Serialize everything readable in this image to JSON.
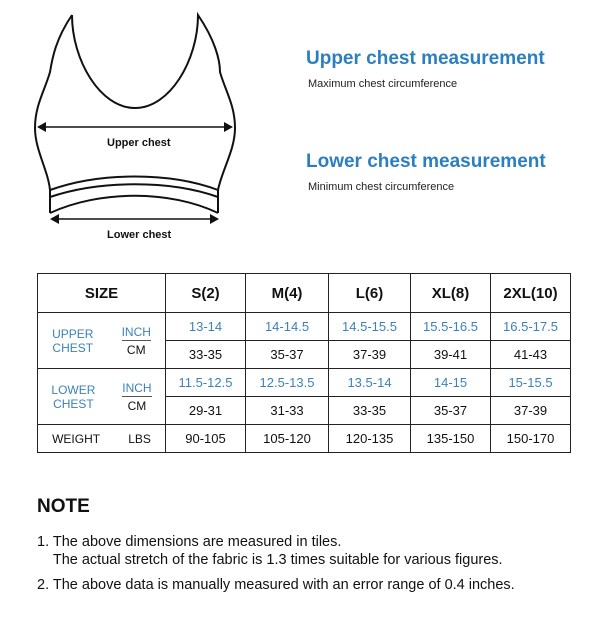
{
  "diagram": {
    "upper_label": "Upper chest",
    "lower_label": "Lower chest"
  },
  "upper": {
    "title": "Upper chest measurement",
    "subtitle": "Maximum chest circumference"
  },
  "lower": {
    "title": "Lower chest measurement",
    "subtitle": "Minimum chest circumference"
  },
  "table": {
    "size_header": "SIZE",
    "sizes": [
      "S(2)",
      "M(4)",
      "L(6)",
      "XL(8)",
      "2XL(10)"
    ],
    "upper_label": [
      "UPPER",
      "CHEST"
    ],
    "lower_label": [
      "LOWER",
      "CHEST"
    ],
    "inch": "INCH",
    "cm": "CM",
    "weight_label": "WEIGHT",
    "lbs": "LBS",
    "upper_inch": [
      "13-14",
      "14-14.5",
      "14.5-15.5",
      "15.5-16.5",
      "16.5-17.5"
    ],
    "upper_cm": [
      "33-35",
      "35-37",
      "37-39",
      "39-41",
      "41-43"
    ],
    "lower_inch": [
      "11.5-12.5",
      "12.5-13.5",
      "13.5-14",
      "14-15",
      "15-15.5"
    ],
    "lower_cm": [
      "29-31",
      "31-33",
      "33-35",
      "35-37",
      "37-39"
    ],
    "weight": [
      "90-105",
      "105-120",
      "120-135",
      "135-150",
      "150-170"
    ]
  },
  "note": {
    "title": "NOTE",
    "items": [
      "1. The above dimensions are measured in tiles.",
      "    The actual stretch of the fabric is 1.3 times suitable for various figures.",
      "2. The above data is manually measured with an error range of 0.4 inches."
    ]
  },
  "colors": {
    "accent": "#2b7fc1",
    "table_blue": "#3c82b8"
  }
}
